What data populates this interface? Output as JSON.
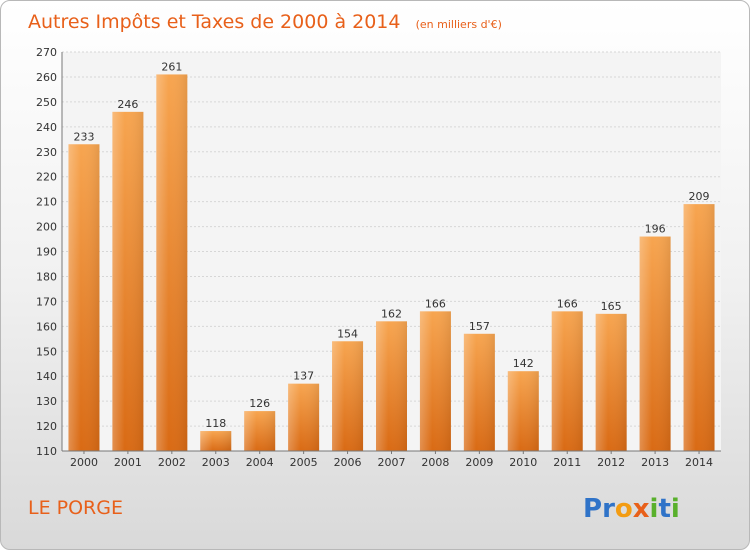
{
  "chart_data": {
    "type": "bar",
    "title": "Autres Impôts et Taxes de 2000 à 2014",
    "subtitle": "(en milliers d'€)",
    "categories": [
      "2000",
      "2001",
      "2002",
      "2003",
      "2004",
      "2005",
      "2006",
      "2007",
      "2008",
      "2009",
      "2010",
      "2011",
      "2012",
      "2013",
      "2014"
    ],
    "values": [
      233,
      246,
      261,
      118,
      126,
      137,
      154,
      162,
      166,
      157,
      142,
      166,
      165,
      196,
      209
    ],
    "ylim": [
      110,
      270
    ],
    "yticks": [
      110,
      120,
      130,
      140,
      150,
      160,
      170,
      180,
      190,
      200,
      210,
      220,
      230,
      240,
      250,
      260,
      270
    ],
    "grid": true,
    "bar_color": "#f08a2e",
    "location": "LE PORGE"
  },
  "brand": {
    "letters": [
      "P",
      "r",
      "o",
      "x",
      "i",
      "t",
      "i"
    ],
    "colors": [
      "#2f73c8",
      "#2f73c8",
      "#f39c12",
      "#e8601a",
      "#59b02c",
      "#2f73c8",
      "#59b02c"
    ]
  }
}
